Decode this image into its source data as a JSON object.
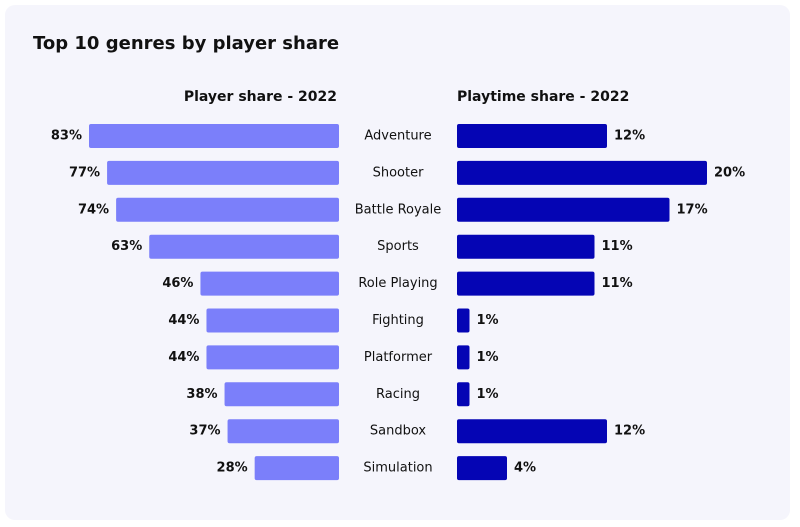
{
  "chart_data": {
    "type": "butterfly",
    "title": "Top 10 genres by player share",
    "categories": [
      "Adventure",
      "Shooter",
      "Battle Royale",
      "Sports",
      "Role Playing",
      "Fighting",
      "Platformer",
      "Racing",
      "Sandbox",
      "Simulation"
    ],
    "series": [
      {
        "name": "Player share - 2022",
        "color": "#7b7ffa",
        "values": [
          83,
          77,
          74,
          63,
          46,
          44,
          44,
          38,
          37,
          28
        ],
        "value_labels": [
          "83%",
          "77%",
          "74%",
          "63%",
          "46%",
          "44%",
          "44%",
          "38%",
          "37%",
          "28%"
        ]
      },
      {
        "name": "Playtime share - 2022",
        "color": "#0505b4",
        "values": [
          12,
          20,
          17,
          11,
          11,
          1,
          1,
          1,
          12,
          4
        ],
        "value_labels": [
          "12%",
          "20%",
          "17%",
          "11%",
          "11%",
          "1%",
          "1%",
          "1%",
          "12%",
          "4%"
        ]
      }
    ]
  }
}
